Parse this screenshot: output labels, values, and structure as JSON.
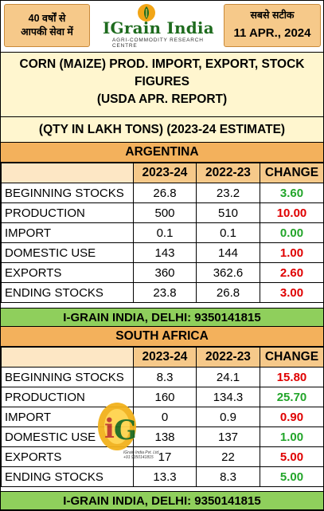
{
  "header": {
    "left_line1": "40 वर्षों से",
    "left_line2": "आपकी सेवा में",
    "logo_brand": "IGrain India",
    "logo_sub": "AGRI-COMMODITY RESEARCH CENTRE",
    "right_tag": "सबसे सटीक",
    "date": "11 APR., 2024"
  },
  "title": {
    "line1": "CORN (MAIZE) PROD. IMPORT, EXPORT, STOCK",
    "line2": "FIGURES",
    "line3": "(USDA APR. REPORT)",
    "qty": "(QTY IN LAKH TONS) (2023-24 ESTIMATE)"
  },
  "columns": [
    "2023-24",
    "2022-23",
    "CHANGE"
  ],
  "argentina": {
    "name": "ARGENTINA",
    "rows": [
      {
        "label": "BEGINNING STOCKS",
        "y2023": "26.8",
        "y2022": "23.2",
        "change": "3.60",
        "dir": "up"
      },
      {
        "label": "PRODUCTION",
        "y2023": "500",
        "y2022": "510",
        "change": "10.00",
        "dir": "down"
      },
      {
        "label": "IMPORT",
        "y2023": "0.1",
        "y2022": "0.1",
        "change": "0.00",
        "dir": "up"
      },
      {
        "label": "DOMESTIC USE",
        "y2023": "143",
        "y2022": "144",
        "change": "1.00",
        "dir": "down"
      },
      {
        "label": "EXPORTS",
        "y2023": "360",
        "y2022": "362.6",
        "change": "2.60",
        "dir": "down"
      },
      {
        "label": "ENDING STOCKS",
        "y2023": "23.8",
        "y2022": "26.8",
        "change": "3.00",
        "dir": "down"
      }
    ]
  },
  "south_africa": {
    "name": "SOUTH AFRICA",
    "rows": [
      {
        "label": "BEGINNING STOCKS",
        "y2023": "8.3",
        "y2022": "24.1",
        "change": "15.80",
        "dir": "down"
      },
      {
        "label": "PRODUCTION",
        "y2023": "160",
        "y2022": "134.3",
        "change": "25.70",
        "dir": "up"
      },
      {
        "label": "IMPORT",
        "y2023": "0",
        "y2022": "0.9",
        "change": "0.90",
        "dir": "down"
      },
      {
        "label": "DOMESTIC USE",
        "y2023": "138",
        "y2022": "137",
        "change": "1.00",
        "dir": "up"
      },
      {
        "label": "EXPORTS",
        "y2023": "17",
        "y2022": "22",
        "change": "5.00",
        "dir": "down"
      },
      {
        "label": "ENDING STOCKS",
        "y2023": "13.3",
        "y2022": "8.3",
        "change": "5.00",
        "dir": "up"
      }
    ]
  },
  "footer": "I-GRAIN INDIA, DELHI: 9350141815",
  "watermark": {
    "line1": "IGrain India Pvt. Ltd.",
    "line2": "+91 9350141815"
  },
  "colors": {
    "up": "#22a52a",
    "down": "#e00000",
    "band": "#f3b15c",
    "footer": "#8fcf5c",
    "title_bg": "#fff6cf"
  }
}
